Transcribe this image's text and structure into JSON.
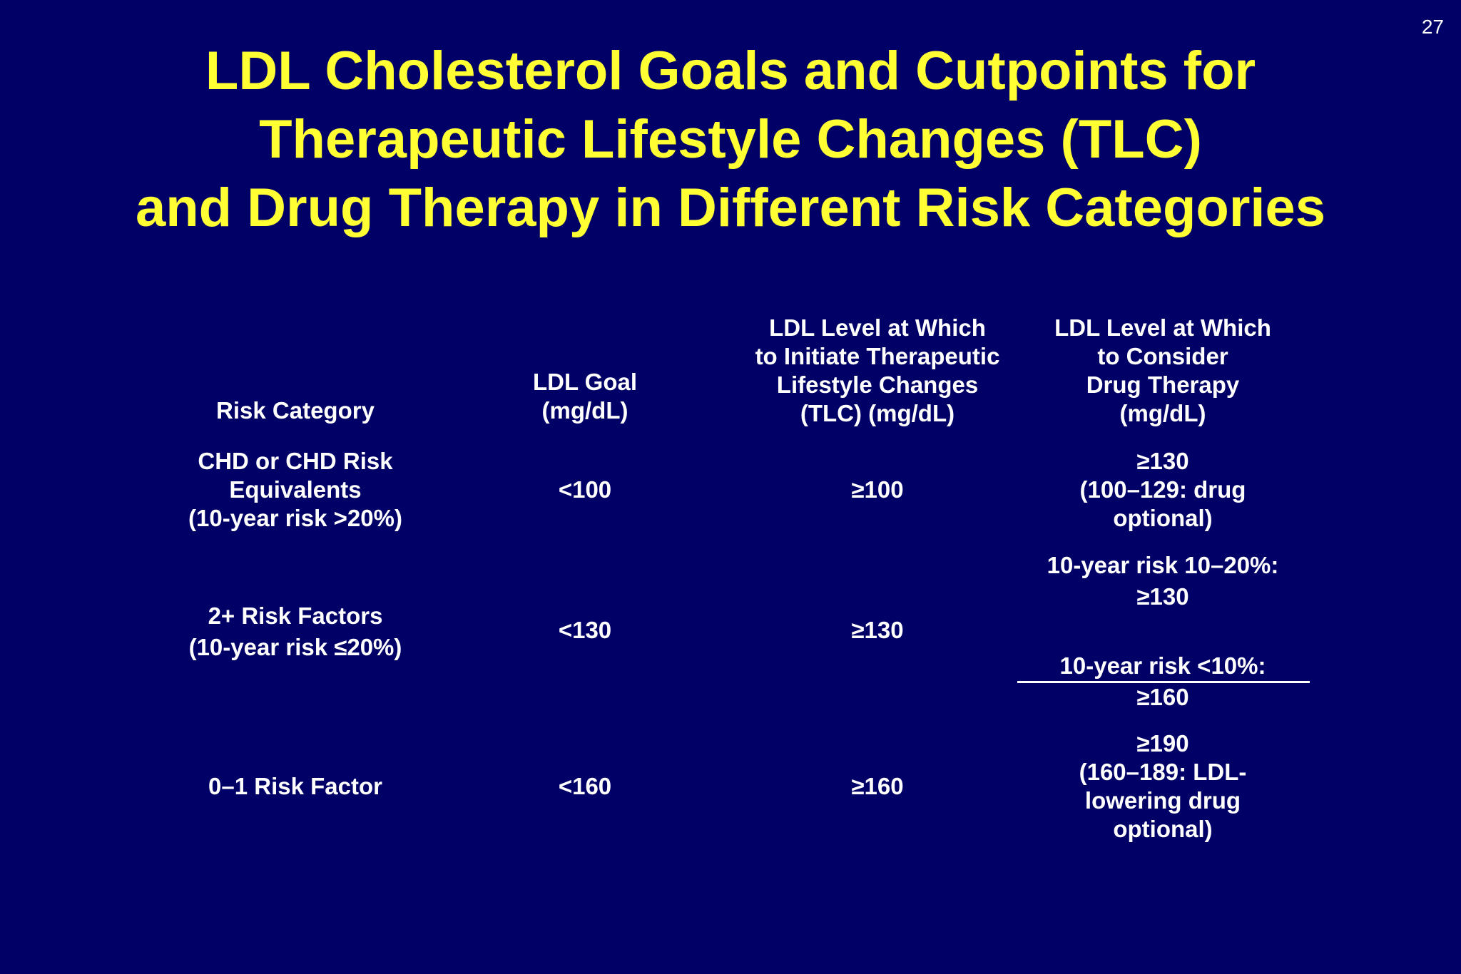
{
  "slide_number": "27",
  "title": [
    "LDL Cholesterol Goals and Cutpoints for",
    "Therapeutic Lifestyle Changes (TLC)",
    "and Drug Therapy in Different Risk Categories"
  ],
  "table": {
    "headers": {
      "risk_category": [
        "Risk Category"
      ],
      "ldl_goal": [
        "LDL Goal",
        "(mg/dL)"
      ],
      "tlc_level": [
        "LDL Level at Which",
        "to Initiate Therapeutic",
        "Lifestyle Changes",
        "(TLC) (mg/dL)"
      ],
      "drug_level": [
        "LDL Level at Which",
        "to Consider",
        "Drug Therapy",
        "(mg/dL)"
      ]
    },
    "rows": [
      {
        "category": [
          "CHD or CHD Risk",
          "Equivalents",
          "(10-year risk >20%)"
        ],
        "goal": "<100",
        "tlc": "≥100",
        "drug": [
          "≥130",
          "(100–129: drug",
          "optional)"
        ]
      },
      {
        "category": [
          "2+ Risk Factors",
          "(10-year risk ≤20%)"
        ],
        "goal": "<130",
        "tlc": "≥130",
        "drug_a": [
          "10-year risk 10–20%:",
          "≥130"
        ],
        "drug_b": [
          "10-year risk <10%:",
          "≥160"
        ]
      },
      {
        "category": [
          "0–1 Risk Factor"
        ],
        "goal": "<160",
        "tlc": "≥160",
        "drug": [
          "≥190",
          "(160–189: LDL-",
          "lowering drug",
          "optional)"
        ]
      }
    ]
  }
}
